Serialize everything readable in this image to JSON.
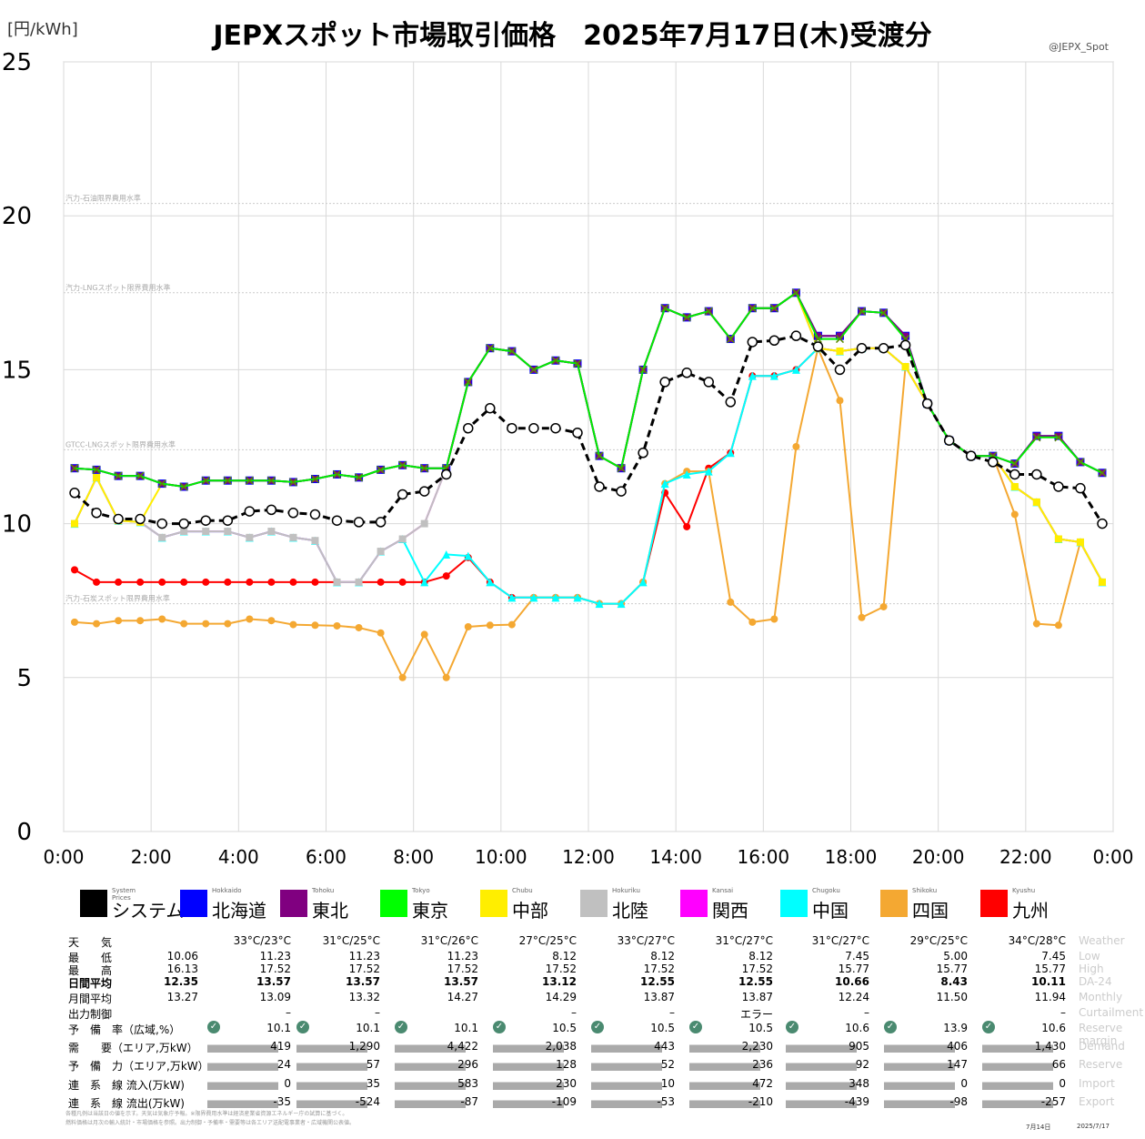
{
  "title": "JEPXスポット市場取引価格　2025年7月17日(木)受渡分",
  "unit": "[円/kWh]",
  "handle": "@JEPX_Spot",
  "chart_data": {
    "type": "line",
    "title": "JEPXスポット市場取引価格　2025年7月17日(木)受渡分",
    "ylabel": "[円/kWh]",
    "ylim": [
      0,
      25
    ],
    "xlim": [
      0,
      24
    ],
    "yticks": [
      "0",
      "5",
      "10",
      "15",
      "20",
      "25"
    ],
    "xticks": [
      "0:00",
      "2:00",
      "4:00",
      "6:00",
      "8:00",
      "10:00",
      "12:00",
      "14:00",
      "16:00",
      "18:00",
      "20:00",
      "22:00",
      "0:00"
    ],
    "grid": true,
    "reference_lines": [
      {
        "label": "汽力-石炭スポット限界費用水準",
        "y": 7.4
      },
      {
        "label": "GTCC-LNGスポット限界費用水準",
        "y": 12.4
      },
      {
        "label": "汽力-LNGスポット限界費用水準",
        "y": 17.5
      },
      {
        "label": "汽力-石油限界費用水準",
        "y": 20.4
      }
    ],
    "x": [
      "0:00",
      "0:30",
      "1:00",
      "1:30",
      "2:00",
      "2:30",
      "3:00",
      "3:30",
      "4:00",
      "4:30",
      "5:00",
      "5:30",
      "6:00",
      "6:30",
      "7:00",
      "7:30",
      "8:00",
      "8:30",
      "9:00",
      "9:30",
      "10:00",
      "10:30",
      "11:00",
      "11:30",
      "12:00",
      "12:30",
      "13:00",
      "13:30",
      "14:00",
      "14:30",
      "15:00",
      "15:30",
      "16:00",
      "16:30",
      "17:00",
      "17:30",
      "18:00",
      "18:30",
      "19:00",
      "19:30",
      "20:00",
      "20:30",
      "21:00",
      "21:30",
      "22:00",
      "22:30",
      "23:00",
      "23:30"
    ],
    "series": [
      {
        "key": "kyushu",
        "color": "#ff0000",
        "values": [
          8.5,
          8.1,
          8.1,
          8.1,
          8.1,
          8.1,
          8.1,
          8.1,
          8.1,
          8.1,
          8.1,
          8.1,
          8.1,
          8.1,
          8.1,
          8.1,
          8.1,
          8.3,
          8.9,
          8.1,
          7.6,
          7.6,
          7.6,
          7.6,
          7.4,
          7.4,
          8.1,
          11.0,
          9.9,
          11.8,
          12.3,
          14.8,
          14.8,
          15.0,
          15.7,
          15.6,
          15.7,
          15.7,
          15.1,
          13.9,
          12.7,
          12.2,
          12.2,
          11.2,
          10.7,
          9.5,
          9.4,
          8.1
        ]
      },
      {
        "key": "shikoku",
        "color": "#f4a832",
        "values": [
          6.8,
          6.75,
          6.85,
          6.85,
          6.9,
          6.75,
          6.75,
          6.75,
          6.9,
          6.85,
          6.72,
          6.7,
          6.68,
          6.62,
          6.45,
          5.0,
          6.4,
          5.0,
          6.65,
          6.7,
          6.72,
          7.6,
          7.6,
          7.6,
          7.4,
          7.4,
          8.1,
          11.3,
          11.7,
          11.7,
          7.45,
          6.8,
          6.9,
          12.5,
          15.7,
          14.0,
          6.95,
          7.3,
          15.1,
          13.9,
          12.7,
          12.2,
          12.2,
          10.3,
          6.75,
          6.7,
          9.4,
          8.1
        ]
      },
      {
        "key": "chugoku",
        "color": "#00ffff",
        "values": [
          10.0,
          11.5,
          10.1,
          10.05,
          9.55,
          9.75,
          9.75,
          9.75,
          9.55,
          9.75,
          9.55,
          9.45,
          8.1,
          8.1,
          9.1,
          9.5,
          8.1,
          9.0,
          8.95,
          8.1,
          7.6,
          7.6,
          7.6,
          7.6,
          7.4,
          7.4,
          8.1,
          11.3,
          11.6,
          11.7,
          12.3,
          14.8,
          14.8,
          15.0,
          15.7,
          15.6,
          15.7,
          15.7,
          15.1,
          13.9,
          12.7,
          12.2,
          12.2,
          11.2,
          10.7,
          9.5,
          9.4,
          8.1
        ]
      },
      {
        "key": "kansai",
        "color": "#ff00ff",
        "values": [
          10.0,
          11.5,
          10.1,
          10.05,
          9.55,
          9.75,
          9.75,
          9.75,
          9.55,
          9.75,
          9.55,
          9.45,
          8.1,
          8.1,
          9.1,
          9.5,
          10.0,
          11.8,
          14.6,
          15.7,
          15.6,
          15.0,
          15.3,
          15.2,
          12.2,
          11.8,
          15.0,
          17.0,
          16.7,
          16.9,
          16.0,
          17.0,
          17.0,
          17.5,
          15.7,
          15.6,
          15.7,
          15.7,
          15.1,
          13.9,
          12.7,
          12.2,
          12.2,
          11.2,
          10.7,
          9.5,
          9.4,
          8.1
        ]
      },
      {
        "key": "hokuriku",
        "color": "#c0c0c0",
        "values": [
          10.0,
          11.5,
          10.1,
          10.05,
          9.55,
          9.75,
          9.75,
          9.75,
          9.55,
          9.75,
          9.55,
          9.45,
          8.1,
          8.1,
          9.1,
          9.5,
          10.0,
          11.8,
          14.6,
          15.7,
          15.6,
          15.0,
          15.3,
          15.2,
          12.2,
          11.8,
          15.0,
          17.0,
          16.7,
          16.9,
          16.0,
          17.0,
          17.0,
          17.5,
          15.7,
          15.6,
          15.7,
          15.7,
          15.1,
          13.9,
          12.7,
          12.2,
          12.2,
          11.2,
          10.7,
          9.5,
          9.4,
          8.1
        ]
      },
      {
        "key": "chubu",
        "color": "#ffee00",
        "values": [
          10.0,
          11.5,
          10.1,
          10.05,
          11.3,
          11.2,
          11.4,
          11.4,
          11.4,
          11.4,
          11.35,
          11.45,
          11.6,
          11.5,
          11.75,
          11.9,
          11.8,
          11.8,
          14.6,
          15.7,
          15.6,
          15.0,
          15.3,
          15.2,
          12.2,
          11.8,
          15.0,
          17.0,
          16.7,
          16.9,
          16.0,
          17.0,
          17.0,
          17.5,
          15.7,
          15.6,
          15.7,
          15.7,
          15.1,
          13.9,
          12.7,
          12.2,
          12.2,
          11.2,
          10.7,
          9.5,
          9.4,
          8.1
        ]
      },
      {
        "key": "hokkaido",
        "color": "#0000ff",
        "values": [
          11.8,
          11.75,
          11.55,
          11.55,
          11.3,
          11.2,
          11.4,
          11.4,
          11.4,
          11.4,
          11.35,
          11.45,
          11.6,
          11.5,
          11.75,
          11.9,
          11.8,
          11.8,
          14.6,
          15.7,
          15.6,
          15.0,
          15.3,
          15.2,
          12.2,
          11.8,
          15.0,
          17.0,
          16.7,
          16.9,
          16.0,
          17.0,
          17.0,
          17.5,
          16.1,
          16.1,
          16.9,
          16.85,
          16.1,
          13.9,
          12.7,
          12.2,
          12.2,
          11.95,
          12.85,
          12.85,
          12.0,
          11.65
        ]
      },
      {
        "key": "tohoku",
        "color": "#800080",
        "values": [
          11.8,
          11.75,
          11.55,
          11.55,
          11.3,
          11.2,
          11.4,
          11.4,
          11.4,
          11.4,
          11.35,
          11.45,
          11.6,
          11.5,
          11.75,
          11.9,
          11.8,
          11.8,
          14.6,
          15.7,
          15.6,
          15.0,
          15.3,
          15.2,
          12.2,
          11.8,
          15.0,
          17.0,
          16.7,
          16.9,
          16.0,
          17.0,
          17.0,
          17.5,
          16.1,
          16.1,
          16.9,
          16.85,
          16.1,
          13.9,
          12.7,
          12.2,
          12.2,
          11.95,
          12.85,
          12.85,
          12.0,
          11.65
        ]
      },
      {
        "key": "tokyo",
        "color": "#00ee00",
        "values": [
          11.8,
          11.75,
          11.55,
          11.55,
          11.3,
          11.2,
          11.4,
          11.4,
          11.4,
          11.4,
          11.35,
          11.45,
          11.6,
          11.5,
          11.75,
          11.9,
          11.8,
          11.8,
          14.6,
          15.7,
          15.6,
          15.0,
          15.3,
          15.2,
          12.2,
          11.8,
          15.0,
          17.0,
          16.7,
          16.9,
          16.0,
          17.0,
          17.0,
          17.5,
          16.0,
          16.0,
          16.9,
          16.85,
          16.0,
          13.9,
          12.7,
          12.2,
          12.2,
          11.95,
          12.8,
          12.8,
          12.0,
          11.65
        ]
      },
      {
        "key": "system",
        "color": "#000000",
        "values": [
          11.0,
          10.35,
          10.15,
          10.15,
          10.0,
          10.0,
          10.1,
          10.1,
          10.4,
          10.45,
          10.35,
          10.3,
          10.1,
          10.05,
          10.05,
          10.95,
          11.05,
          11.6,
          13.1,
          13.75,
          13.1,
          13.1,
          13.1,
          12.95,
          11.2,
          11.05,
          12.3,
          14.6,
          14.9,
          14.6,
          13.95,
          15.9,
          15.95,
          16.1,
          15.75,
          15.0,
          15.7,
          15.7,
          15.8,
          13.9,
          12.7,
          12.2,
          12.0,
          11.6,
          11.6,
          11.2,
          11.15,
          10.0
        ]
      }
    ]
  },
  "legend": [
    {
      "key": "system",
      "en": "System Prices",
      "jp": "システム",
      "color": "#000000"
    },
    {
      "key": "hokkaido",
      "en": "Hokkaido",
      "jp": "北海道",
      "color": "#0000ff"
    },
    {
      "key": "tohoku",
      "en": "Tohoku",
      "jp": "東北",
      "color": "#800080"
    },
    {
      "key": "tokyo",
      "en": "Tokyo",
      "jp": "東京",
      "color": "#00ff00"
    },
    {
      "key": "chubu",
      "en": "Chubu",
      "jp": "中部",
      "color": "#ffee00"
    },
    {
      "key": "hokuriku",
      "en": "Hokuriku",
      "jp": "北陸",
      "color": "#c0c0c0"
    },
    {
      "key": "kansai",
      "en": "Kansai",
      "jp": "関西",
      "color": "#ff00ff"
    },
    {
      "key": "chugoku",
      "en": "Chugoku",
      "jp": "中国",
      "color": "#00ffff"
    },
    {
      "key": "shikoku",
      "en": "Shikoku",
      "jp": "四国",
      "color": "#f4a832"
    },
    {
      "key": "kyushu",
      "en": "Kyushu",
      "jp": "九州",
      "color": "#ff0000"
    }
  ],
  "table": {
    "row_labels": [
      "天　　気",
      "最　　低",
      "最　　高",
      "日間平均",
      "月間平均",
      "出力制御",
      "予　備　率（広域,%）",
      "需　　要（エリア,万kW）",
      "予　備　力（エリア,万kW）",
      "連　系　線 流入(万kW)",
      "連　系　線 流出(万kW)"
    ],
    "en_labels": [
      "Weather",
      "Low",
      "High",
      "DA-24",
      "Monthly",
      "Curtailment",
      "Reserve margin",
      "Demand",
      "Reserve",
      "Import",
      "Export"
    ],
    "weather": [
      "",
      "33°C/23°C",
      "31°C/25°C",
      "31°C/26°C",
      "27°C/25°C",
      "33°C/27°C",
      "31°C/27°C",
      "31°C/27°C",
      "29°C/25°C",
      "34°C/28°C"
    ],
    "low": [
      "10.06",
      "11.23",
      "11.23",
      "11.23",
      "8.12",
      "8.12",
      "8.12",
      "7.45",
      "5.00",
      "7.45"
    ],
    "high": [
      "16.13",
      "17.52",
      "17.52",
      "17.52",
      "17.52",
      "17.52",
      "17.52",
      "15.77",
      "15.77",
      "15.77"
    ],
    "daily_avg": [
      "12.35",
      "13.57",
      "13.57",
      "13.57",
      "13.12",
      "12.55",
      "12.55",
      "10.66",
      "8.43",
      "10.11"
    ],
    "monthly_avg": [
      "13.27",
      "13.09",
      "13.32",
      "14.27",
      "14.29",
      "13.87",
      "13.87",
      "12.24",
      "11.50",
      "11.94"
    ],
    "curtailment": [
      "",
      "–",
      "–",
      "",
      "–",
      "–",
      "エラー",
      "–",
      "",
      "–"
    ],
    "reserve_margin": [
      "",
      "10.1",
      "10.1",
      "10.1",
      "10.5",
      "10.5",
      "10.5",
      "10.6",
      "13.9",
      "10.6"
    ],
    "demand": [
      "",
      "419",
      "1,290",
      "4,422",
      "2,038",
      "443",
      "2,230",
      "905",
      "406",
      "1,430"
    ],
    "reserve": [
      "",
      "24",
      "57",
      "296",
      "128",
      "52",
      "236",
      "92",
      "147",
      "66"
    ],
    "import": [
      "",
      "0",
      "35",
      "583",
      "230",
      "10",
      "472",
      "348",
      "0",
      "0"
    ],
    "export": [
      "",
      "-35",
      "-524",
      "-87",
      "-109",
      "-53",
      "-210",
      "-439",
      "-98",
      "-257"
    ]
  },
  "footer": {
    "line1": "各種凡例は当該日の値を示す。天気は気象庁予報。※限界費用水準は経済産業省資源エネルギー庁の試算に基づく。",
    "line2": "燃料価格は月次の輸入統計・市場価格を参照。出力制御・予備率・需要等は各エリア送配電事業者・広域機関公表値。",
    "date_left": "7月14日",
    "date_right": "2025/7/17"
  }
}
